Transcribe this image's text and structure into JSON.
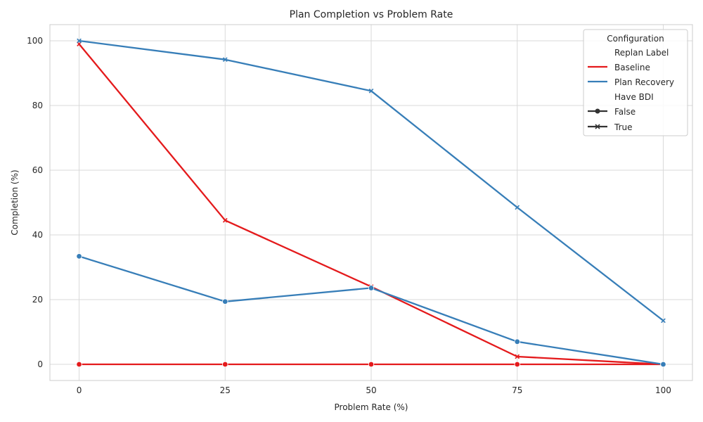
{
  "chart_data": {
    "type": "line",
    "title": "Plan Completion vs Problem Rate",
    "xlabel": "Problem Rate (%)",
    "ylabel": "Completion (%)",
    "x": [
      0,
      25,
      50,
      75,
      100
    ],
    "xticks": [
      "0",
      "25",
      "50",
      "75",
      "100"
    ],
    "yticks": [
      "0",
      "20",
      "40",
      "60",
      "80",
      "100"
    ],
    "xlim": [
      -5,
      105
    ],
    "ylim": [
      -5,
      105
    ],
    "grid": true,
    "legend": {
      "title": "Configuration",
      "position": "top-right",
      "hue_title": "Replan Label",
      "style_title": "Have BDI",
      "entries": [
        {
          "label": "Baseline",
          "color": "#e41a1c"
        },
        {
          "label": "Plan Recovery",
          "color": "#377eb8"
        },
        {
          "label": "False",
          "marker": "circle",
          "color": "#333333"
        },
        {
          "label": "True",
          "marker": "x",
          "color": "#333333"
        }
      ]
    },
    "series": [
      {
        "replan": "Baseline",
        "bdi": "False",
        "color": "#e41a1c",
        "marker": "circle",
        "values": [
          0,
          0,
          0,
          0,
          0
        ]
      },
      {
        "replan": "Baseline",
        "bdi": "True",
        "color": "#e41a1c",
        "marker": "x",
        "values": [
          99.0,
          44.5,
          24.0,
          2.4,
          0
        ]
      },
      {
        "replan": "Plan Recovery",
        "bdi": "False",
        "color": "#377eb8",
        "marker": "circle",
        "values": [
          33.4,
          19.4,
          23.6,
          7.0,
          0
        ]
      },
      {
        "replan": "Plan Recovery",
        "bdi": "True",
        "color": "#377eb8",
        "marker": "x",
        "values": [
          100.0,
          94.2,
          84.5,
          48.5,
          13.5
        ]
      }
    ]
  }
}
